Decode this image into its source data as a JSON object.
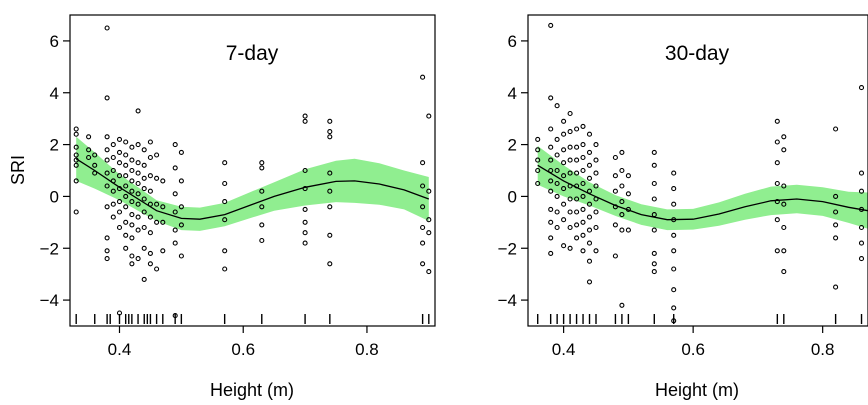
{
  "chart_data": [
    {
      "type": "scatter",
      "title": "7-day",
      "xlabel": "Height (m)",
      "ylabel": "SRI",
      "xlim": [
        0.32,
        0.91
      ],
      "ylim": [
        -5,
        7
      ],
      "x_ticks": [
        "0.4",
        "0.6",
        "0.8"
      ],
      "y_ticks": [
        "-4",
        "-2",
        "0",
        "2",
        "4",
        "6"
      ],
      "grid": false,
      "fit_color": "#000000",
      "band_color": "#90ee90",
      "points": [
        [
          0.33,
          2.6
        ],
        [
          0.33,
          2.4
        ],
        [
          0.33,
          1.9
        ],
        [
          0.33,
          1.6
        ],
        [
          0.33,
          1.4
        ],
        [
          0.33,
          1.2
        ],
        [
          0.33,
          0.6
        ],
        [
          0.33,
          -0.6
        ],
        [
          0.35,
          2.3
        ],
        [
          0.35,
          1.8
        ],
        [
          0.35,
          1.5
        ],
        [
          0.36,
          1.6
        ],
        [
          0.36,
          1.2
        ],
        [
          0.36,
          0.9
        ],
        [
          0.38,
          6.5
        ],
        [
          0.38,
          3.8
        ],
        [
          0.38,
          2.3
        ],
        [
          0.38,
          1.8
        ],
        [
          0.38,
          1.4
        ],
        [
          0.38,
          0.9
        ],
        [
          0.38,
          0.4
        ],
        [
          0.38,
          -0.4
        ],
        [
          0.38,
          -1.6
        ],
        [
          0.38,
          -2.1
        ],
        [
          0.38,
          -2.4
        ],
        [
          0.39,
          2.0
        ],
        [
          0.39,
          1.5
        ],
        [
          0.39,
          1.0
        ],
        [
          0.39,
          0.6
        ],
        [
          0.39,
          0.2
        ],
        [
          0.39,
          -0.3
        ],
        [
          0.39,
          -0.8
        ],
        [
          0.4,
          2.2
        ],
        [
          0.4,
          1.7
        ],
        [
          0.4,
          1.3
        ],
        [
          0.4,
          0.8
        ],
        [
          0.4,
          0.3
        ],
        [
          0.4,
          -0.2
        ],
        [
          0.4,
          -0.6
        ],
        [
          0.4,
          -1.2
        ],
        [
          0.4,
          -4.5
        ],
        [
          0.41,
          2.1
        ],
        [
          0.41,
          1.6
        ],
        [
          0.41,
          1.2
        ],
        [
          0.41,
          0.8
        ],
        [
          0.41,
          0.4
        ],
        [
          0.41,
          0.0
        ],
        [
          0.41,
          -0.4
        ],
        [
          0.41,
          -1.0
        ],
        [
          0.41,
          -1.5
        ],
        [
          0.41,
          -2.0
        ],
        [
          0.42,
          1.9
        ],
        [
          0.42,
          1.4
        ],
        [
          0.42,
          1.0
        ],
        [
          0.42,
          0.6
        ],
        [
          0.42,
          0.2
        ],
        [
          0.42,
          -0.2
        ],
        [
          0.42,
          -0.7
        ],
        [
          0.42,
          -1.1
        ],
        [
          0.42,
          -1.6
        ],
        [
          0.42,
          -2.3
        ],
        [
          0.42,
          -2.6
        ],
        [
          0.43,
          3.3
        ],
        [
          0.43,
          2.0
        ],
        [
          0.43,
          1.3
        ],
        [
          0.43,
          0.9
        ],
        [
          0.43,
          0.5
        ],
        [
          0.43,
          0.1
        ],
        [
          0.43,
          -0.3
        ],
        [
          0.43,
          -0.8
        ],
        [
          0.43,
          -1.3
        ],
        [
          0.43,
          -2.4
        ],
        [
          0.44,
          1.8
        ],
        [
          0.44,
          1.2
        ],
        [
          0.44,
          0.7
        ],
        [
          0.44,
          0.3
        ],
        [
          0.44,
          -0.1
        ],
        [
          0.44,
          -0.6
        ],
        [
          0.44,
          -1.2
        ],
        [
          0.44,
          -2.0
        ],
        [
          0.44,
          -3.2
        ],
        [
          0.45,
          2.1
        ],
        [
          0.45,
          1.5
        ],
        [
          0.45,
          0.8
        ],
        [
          0.45,
          0.2
        ],
        [
          0.45,
          -0.3
        ],
        [
          0.45,
          -0.8
        ],
        [
          0.45,
          -1.4
        ],
        [
          0.45,
          -2.2
        ],
        [
          0.45,
          -2.6
        ],
        [
          0.46,
          1.6
        ],
        [
          0.46,
          0.7
        ],
        [
          0.46,
          -0.3
        ],
        [
          0.46,
          -1.0
        ],
        [
          0.46,
          -2.8
        ],
        [
          0.47,
          0.6
        ],
        [
          0.47,
          -0.4
        ],
        [
          0.47,
          -1.0
        ],
        [
          0.47,
          -2.1
        ],
        [
          0.49,
          2.0
        ],
        [
          0.49,
          1.1
        ],
        [
          0.49,
          0.1
        ],
        [
          0.49,
          -0.6
        ],
        [
          0.49,
          -1.3
        ],
        [
          0.49,
          -1.8
        ],
        [
          0.49,
          -4.6
        ],
        [
          0.5,
          1.7
        ],
        [
          0.5,
          0.6
        ],
        [
          0.5,
          -0.4
        ],
        [
          0.5,
          -1.1
        ],
        [
          0.5,
          -2.3
        ],
        [
          0.57,
          1.3
        ],
        [
          0.57,
          0.5
        ],
        [
          0.57,
          -0.2
        ],
        [
          0.57,
          -0.9
        ],
        [
          0.57,
          -2.1
        ],
        [
          0.57,
          -2.8
        ],
        [
          0.63,
          1.3
        ],
        [
          0.63,
          1.1
        ],
        [
          0.63,
          0.2
        ],
        [
          0.63,
          -0.4
        ],
        [
          0.63,
          -1.1
        ],
        [
          0.63,
          -1.7
        ],
        [
          0.7,
          3.1
        ],
        [
          0.7,
          2.9
        ],
        [
          0.7,
          1.0
        ],
        [
          0.7,
          0.3
        ],
        [
          0.7,
          -0.5
        ],
        [
          0.7,
          -1.0
        ],
        [
          0.7,
          -1.4
        ],
        [
          0.7,
          -1.8
        ],
        [
          0.74,
          2.9
        ],
        [
          0.74,
          2.5
        ],
        [
          0.74,
          2.3
        ],
        [
          0.74,
          0.9
        ],
        [
          0.74,
          0.2
        ],
        [
          0.74,
          -0.4
        ],
        [
          0.74,
          -1.5
        ],
        [
          0.74,
          -2.6
        ],
        [
          0.89,
          4.6
        ],
        [
          0.89,
          1.3
        ],
        [
          0.89,
          0.4
        ],
        [
          0.89,
          -0.4
        ],
        [
          0.89,
          -1.2
        ],
        [
          0.89,
          -1.8
        ],
        [
          0.89,
          -2.6
        ],
        [
          0.9,
          3.1
        ],
        [
          0.9,
          0.2
        ],
        [
          0.9,
          -0.9
        ],
        [
          0.9,
          -1.4
        ],
        [
          0.9,
          -2.9
        ]
      ],
      "fit": [
        [
          0.33,
          1.45
        ],
        [
          0.36,
          1.0
        ],
        [
          0.4,
          0.35
        ],
        [
          0.43,
          -0.1
        ],
        [
          0.46,
          -0.55
        ],
        [
          0.5,
          -0.85
        ],
        [
          0.53,
          -0.88
        ],
        [
          0.57,
          -0.7
        ],
        [
          0.61,
          -0.35
        ],
        [
          0.65,
          0.0
        ],
        [
          0.7,
          0.35
        ],
        [
          0.75,
          0.58
        ],
        [
          0.78,
          0.6
        ],
        [
          0.82,
          0.48
        ],
        [
          0.86,
          0.25
        ],
        [
          0.9,
          -0.1
        ]
      ],
      "band_half_width": [
        0.85,
        0.7,
        0.5,
        0.45,
        0.4,
        0.45,
        0.45,
        0.45,
        0.5,
        0.55,
        0.7,
        0.8,
        0.85,
        0.8,
        0.75,
        0.85
      ],
      "rug": [
        0.33,
        0.36,
        0.38,
        0.385,
        0.4,
        0.41,
        0.415,
        0.42,
        0.43,
        0.44,
        0.445,
        0.45,
        0.46,
        0.47,
        0.49,
        0.5,
        0.57,
        0.63,
        0.7,
        0.74,
        0.89,
        0.9
      ]
    },
    {
      "type": "scatter",
      "title": "30-day",
      "xlabel": "Height (m)",
      "ylabel": "",
      "xlim": [
        0.345,
        0.87
      ],
      "ylim": [
        -5,
        7
      ],
      "x_ticks": [
        "0.4",
        "0.6",
        "0.8"
      ],
      "y_ticks": [
        "-4",
        "-2",
        "0",
        "2",
        "4",
        "6"
      ],
      "grid": false,
      "fit_color": "#000000",
      "band_color": "#90ee90",
      "points": [
        [
          0.36,
          2.2
        ],
        [
          0.36,
          1.8
        ],
        [
          0.36,
          1.4
        ],
        [
          0.36,
          1.0
        ],
        [
          0.36,
          0.5
        ],
        [
          0.38,
          6.6
        ],
        [
          0.38,
          3.8
        ],
        [
          0.38,
          2.6
        ],
        [
          0.38,
          1.9
        ],
        [
          0.38,
          1.4
        ],
        [
          0.38,
          1.0
        ],
        [
          0.38,
          0.6
        ],
        [
          0.38,
          0.2
        ],
        [
          0.38,
          -0.5
        ],
        [
          0.38,
          -1.0
        ],
        [
          0.38,
          -1.6
        ],
        [
          0.38,
          -2.2
        ],
        [
          0.39,
          3.5
        ],
        [
          0.39,
          2.2
        ],
        [
          0.39,
          1.6
        ],
        [
          0.39,
          1.0
        ],
        [
          0.39,
          0.5
        ],
        [
          0.39,
          0.0
        ],
        [
          0.39,
          -0.6
        ],
        [
          0.39,
          -1.2
        ],
        [
          0.4,
          2.9
        ],
        [
          0.4,
          2.4
        ],
        [
          0.4,
          1.8
        ],
        [
          0.4,
          1.3
        ],
        [
          0.4,
          0.8
        ],
        [
          0.4,
          0.3
        ],
        [
          0.4,
          -0.3
        ],
        [
          0.4,
          -0.9
        ],
        [
          0.4,
          -1.9
        ],
        [
          0.41,
          3.2
        ],
        [
          0.41,
          2.5
        ],
        [
          0.41,
          1.9
        ],
        [
          0.41,
          1.4
        ],
        [
          0.41,
          0.9
        ],
        [
          0.41,
          0.4
        ],
        [
          0.41,
          -0.1
        ],
        [
          0.41,
          -0.6
        ],
        [
          0.41,
          -1.2
        ],
        [
          0.41,
          -2.0
        ],
        [
          0.42,
          2.6
        ],
        [
          0.42,
          1.9
        ],
        [
          0.42,
          1.4
        ],
        [
          0.42,
          0.9
        ],
        [
          0.42,
          0.4
        ],
        [
          0.42,
          -0.1
        ],
        [
          0.42,
          -0.6
        ],
        [
          0.42,
          -1.1
        ],
        [
          0.42,
          -1.6
        ],
        [
          0.43,
          2.7
        ],
        [
          0.43,
          2.0
        ],
        [
          0.43,
          1.5
        ],
        [
          0.43,
          1.0
        ],
        [
          0.43,
          0.5
        ],
        [
          0.43,
          0.0
        ],
        [
          0.43,
          -0.5
        ],
        [
          0.43,
          -1.0
        ],
        [
          0.43,
          -1.5
        ],
        [
          0.43,
          -2.1
        ],
        [
          0.44,
          2.4
        ],
        [
          0.44,
          1.7
        ],
        [
          0.44,
          1.2
        ],
        [
          0.44,
          0.7
        ],
        [
          0.44,
          0.2
        ],
        [
          0.44,
          -0.3
        ],
        [
          0.44,
          -0.8
        ],
        [
          0.44,
          -1.3
        ],
        [
          0.44,
          -1.8
        ],
        [
          0.44,
          -2.5
        ],
        [
          0.44,
          -3.3
        ],
        [
          0.45,
          2.0
        ],
        [
          0.45,
          1.4
        ],
        [
          0.45,
          0.9
        ],
        [
          0.45,
          0.4
        ],
        [
          0.45,
          -0.1
        ],
        [
          0.45,
          -0.6
        ],
        [
          0.45,
          -1.2
        ],
        [
          0.45,
          -2.1
        ],
        [
          0.48,
          1.5
        ],
        [
          0.48,
          0.8
        ],
        [
          0.48,
          0.2
        ],
        [
          0.48,
          -0.4
        ],
        [
          0.48,
          -1.1
        ],
        [
          0.48,
          -2.3
        ],
        [
          0.49,
          1.7
        ],
        [
          0.49,
          1.0
        ],
        [
          0.49,
          0.4
        ],
        [
          0.49,
          -0.2
        ],
        [
          0.49,
          -0.7
        ],
        [
          0.49,
          -1.3
        ],
        [
          0.49,
          -4.2
        ],
        [
          0.5,
          0.8
        ],
        [
          0.5,
          0.1
        ],
        [
          0.5,
          -0.5
        ],
        [
          0.5,
          -1.3
        ],
        [
          0.54,
          1.7
        ],
        [
          0.54,
          1.2
        ],
        [
          0.54,
          0.5
        ],
        [
          0.54,
          -0.1
        ],
        [
          0.54,
          -0.7
        ],
        [
          0.54,
          -1.3
        ],
        [
          0.54,
          -2.2
        ],
        [
          0.54,
          -2.6
        ],
        [
          0.54,
          -2.9
        ],
        [
          0.57,
          0.9
        ],
        [
          0.57,
          0.3
        ],
        [
          0.57,
          -0.3
        ],
        [
          0.57,
          -0.9
        ],
        [
          0.57,
          -1.5
        ],
        [
          0.57,
          -2.1
        ],
        [
          0.57,
          -2.8
        ],
        [
          0.57,
          -3.6
        ],
        [
          0.57,
          -4.3
        ],
        [
          0.57,
          -4.8
        ],
        [
          0.73,
          2.9
        ],
        [
          0.73,
          2.1
        ],
        [
          0.73,
          1.3
        ],
        [
          0.73,
          0.5
        ],
        [
          0.73,
          -0.2
        ],
        [
          0.73,
          -0.9
        ],
        [
          0.73,
          -2.1
        ],
        [
          0.74,
          2.3
        ],
        [
          0.74,
          1.8
        ],
        [
          0.74,
          0.4
        ],
        [
          0.74,
          -0.3
        ],
        [
          0.74,
          -1.2
        ],
        [
          0.74,
          -2.1
        ],
        [
          0.74,
          -2.9
        ],
        [
          0.82,
          2.6
        ],
        [
          0.82,
          0.0
        ],
        [
          0.82,
          -0.6
        ],
        [
          0.82,
          -1.1
        ],
        [
          0.82,
          -1.6
        ],
        [
          0.82,
          -3.5
        ],
        [
          0.86,
          4.2
        ],
        [
          0.86,
          0.9
        ],
        [
          0.86,
          0.2
        ],
        [
          0.86,
          -0.5
        ],
        [
          0.86,
          -1.2
        ],
        [
          0.86,
          -1.8
        ],
        [
          0.86,
          -2.4
        ]
      ],
      "fit": [
        [
          0.36,
          1.2
        ],
        [
          0.4,
          0.6
        ],
        [
          0.44,
          0.1
        ],
        [
          0.48,
          -0.35
        ],
        [
          0.52,
          -0.7
        ],
        [
          0.56,
          -0.9
        ],
        [
          0.6,
          -0.88
        ],
        [
          0.64,
          -0.68
        ],
        [
          0.68,
          -0.4
        ],
        [
          0.72,
          -0.17
        ],
        [
          0.76,
          -0.1
        ],
        [
          0.8,
          -0.2
        ],
        [
          0.84,
          -0.42
        ],
        [
          0.87,
          -0.55
        ]
      ],
      "band_half_width": [
        0.75,
        0.6,
        0.45,
        0.4,
        0.4,
        0.4,
        0.4,
        0.45,
        0.5,
        0.55,
        0.55,
        0.55,
        0.6,
        0.7
      ],
      "rug": [
        0.36,
        0.38,
        0.39,
        0.4,
        0.41,
        0.42,
        0.43,
        0.44,
        0.45,
        0.48,
        0.49,
        0.5,
        0.54,
        0.57,
        0.73,
        0.74,
        0.82,
        0.86
      ]
    }
  ]
}
